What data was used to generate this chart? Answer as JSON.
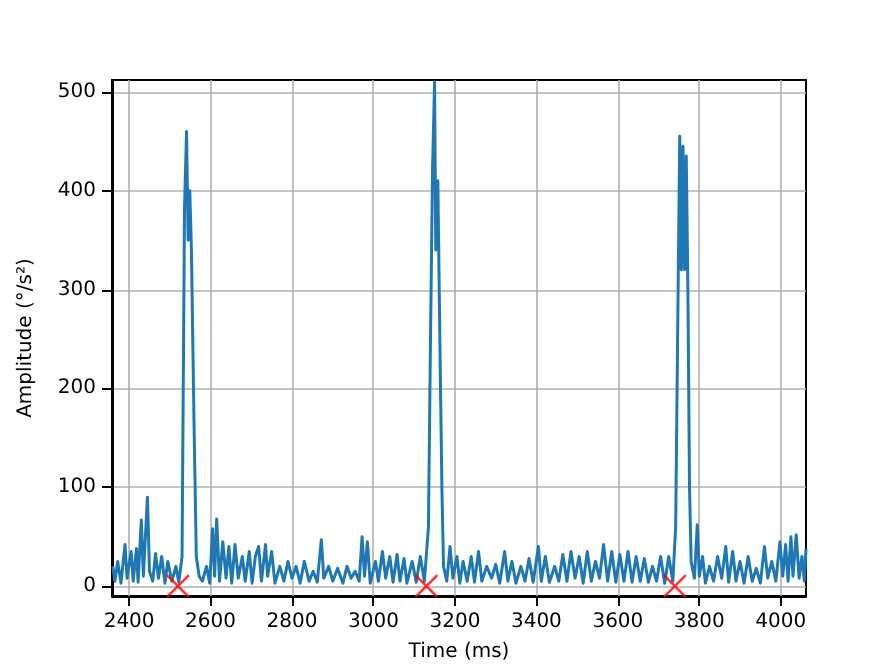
{
  "chart_data": {
    "type": "line",
    "xlabel": "Time (ms)",
    "ylabel": "Amplitude (°/s²)",
    "xlim": [
      2358,
      4062
    ],
    "ylim": [
      -10,
      512
    ],
    "xticks": [
      2400,
      2600,
      2800,
      3000,
      3200,
      3400,
      3600,
      3800,
      4000
    ],
    "yticks": [
      0,
      100,
      200,
      300,
      400,
      500
    ],
    "grid": true,
    "series": [
      {
        "color": "#1f77b4",
        "marker": "none",
        "line_style": "solid",
        "x": [
          2360,
          2365,
          2372,
          2380,
          2390,
          2395,
          2405,
          2410,
          2418,
          2422,
          2430,
          2435,
          2445,
          2450,
          2458,
          2465,
          2472,
          2480,
          2488,
          2495,
          2505,
          2515,
          2522,
          2530,
          2536,
          2541,
          2545,
          2549,
          2553,
          2560,
          2565,
          2572,
          2580,
          2590,
          2598,
          2605,
          2610,
          2615,
          2622,
          2630,
          2638,
          2645,
          2652,
          2660,
          2668,
          2678,
          2685,
          2695,
          2702,
          2710,
          2718,
          2725,
          2735,
          2740,
          2750,
          2758,
          2770,
          2780,
          2790,
          2800,
          2810,
          2820,
          2830,
          2842,
          2852,
          2862,
          2872,
          2878,
          2890,
          2900,
          2912,
          2925,
          2935,
          2945,
          2955,
          2965,
          2972,
          2978,
          2985,
          2992,
          3005,
          3012,
          3022,
          3030,
          3040,
          3048,
          3058,
          3065,
          3075,
          3082,
          3095,
          3105,
          3115,
          3125,
          3135,
          3140,
          3145,
          3150,
          3153,
          3158,
          3163,
          3168,
          3172,
          3180,
          3188,
          3195,
          3205,
          3212,
          3220,
          3230,
          3240,
          3248,
          3258,
          3266,
          3278,
          3290,
          3300,
          3310,
          3322,
          3330,
          3340,
          3350,
          3362,
          3372,
          3382,
          3392,
          3405,
          3412,
          3422,
          3432,
          3445,
          3455,
          3465,
          3475,
          3485,
          3495,
          3505,
          3515,
          3525,
          3535,
          3545,
          3555,
          3565,
          3575,
          3585,
          3595,
          3605,
          3615,
          3625,
          3635,
          3645,
          3655,
          3665,
          3675,
          3685,
          3695,
          3705,
          3715,
          3725,
          3735,
          3742,
          3748,
          3752,
          3756,
          3760,
          3764,
          3768,
          3772,
          3776,
          3780,
          3788,
          3795,
          3800,
          3808,
          3815,
          3825,
          3835,
          3845,
          3855,
          3865,
          3872,
          3882,
          3890,
          3900,
          3910,
          3920,
          3930,
          3940,
          3950,
          3960,
          3968,
          3978,
          3988,
          3998,
          4005,
          4012,
          4018,
          4025,
          4030,
          4038,
          4045,
          4052,
          4058,
          4062
        ],
        "values": [
          20,
          5,
          25,
          3,
          42,
          8,
          35,
          5,
          38,
          4,
          67,
          10,
          90,
          15,
          5,
          33,
          8,
          30,
          3,
          25,
          5,
          20,
          4,
          30,
          380,
          460,
          350,
          400,
          340,
          150,
          30,
          10,
          5,
          20,
          3,
          58,
          10,
          68,
          5,
          45,
          8,
          40,
          3,
          42,
          8,
          30,
          5,
          35,
          3,
          30,
          40,
          5,
          42,
          10,
          35,
          3,
          20,
          5,
          25,
          8,
          20,
          3,
          25,
          5,
          15,
          4,
          47,
          8,
          20,
          5,
          18,
          3,
          20,
          8,
          15,
          5,
          50,
          10,
          45,
          3,
          25,
          5,
          35,
          8,
          30,
          4,
          32,
          5,
          28,
          3,
          25,
          4,
          30,
          5,
          60,
          250,
          420,
          510,
          340,
          410,
          250,
          100,
          20,
          5,
          40,
          8,
          30,
          3,
          25,
          5,
          30,
          4,
          35,
          5,
          20,
          8,
          22,
          3,
          35,
          5,
          25,
          3,
          20,
          5,
          28,
          4,
          40,
          5,
          30,
          4,
          20,
          5,
          32,
          5,
          35,
          8,
          30,
          3,
          35,
          5,
          25,
          8,
          42,
          5,
          35,
          4,
          32,
          5,
          35,
          4,
          30,
          5,
          28,
          4,
          20,
          5,
          30,
          3,
          30,
          5,
          60,
          300,
          455,
          320,
          445,
          320,
          435,
          300,
          100,
          25,
          8,
          62,
          10,
          30,
          3,
          20,
          5,
          30,
          8,
          40,
          4,
          35,
          5,
          25,
          3,
          30,
          5,
          18,
          3,
          40,
          8,
          25,
          5,
          45,
          10,
          42,
          5,
          50,
          10,
          52,
          8,
          30,
          5,
          38
        ]
      },
      {
        "type": "scatter",
        "color": "#ff0000",
        "marker": "cross",
        "x": [
          2520,
          3130,
          3740
        ],
        "values": [
          0,
          0,
          0
        ]
      }
    ]
  }
}
